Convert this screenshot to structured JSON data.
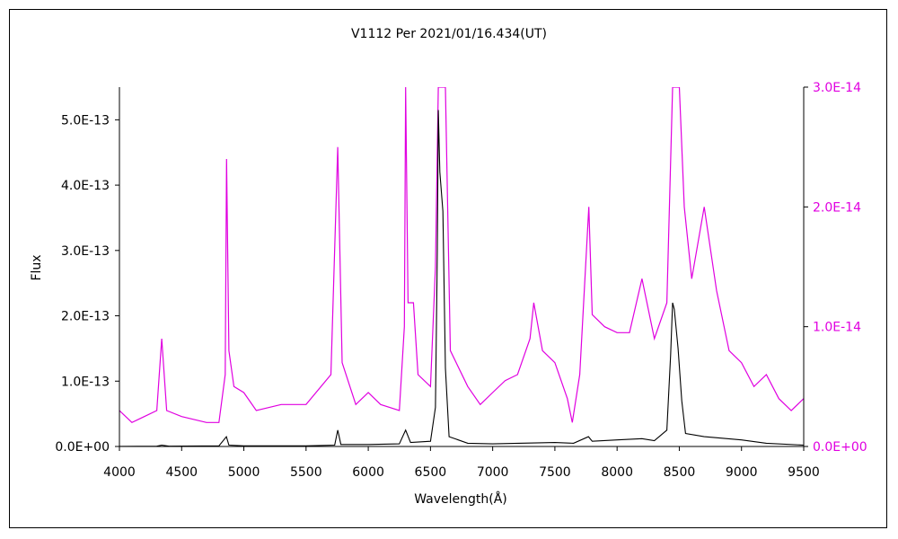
{
  "chart_data": {
    "type": "line",
    "title": "V1112 Per  2021/01/16.434(UT)",
    "xlabel": "Wavelength(Å)",
    "ylabel": "Flux",
    "xlim": [
      4000,
      9500
    ],
    "ylim_left": [
      0,
      5.5e-13
    ],
    "ylim_right": [
      0,
      3e-14
    ],
    "x_ticks": [
      "4000",
      "4500",
      "5000",
      "5500",
      "6000",
      "6500",
      "7000",
      "7500",
      "8000",
      "8500",
      "9000",
      "9500"
    ],
    "y_ticks_left": [
      {
        "value": 0,
        "label": "0.0E+00"
      },
      {
        "value": 1e-13,
        "label": "1.0E-13"
      },
      {
        "value": 2e-13,
        "label": "2.0E-13"
      },
      {
        "value": 3e-13,
        "label": "3.0E-13"
      },
      {
        "value": 4e-13,
        "label": "4.0E-13"
      },
      {
        "value": 5e-13,
        "label": "5.0E-13"
      }
    ],
    "y_ticks_right": [
      {
        "value": 0,
        "label": "0.0E+00"
      },
      {
        "value": 1e-14,
        "label": "1.0E-14"
      },
      {
        "value": 2e-14,
        "label": "2.0E-14"
      },
      {
        "value": 3e-14,
        "label": "3.0E-14"
      }
    ],
    "series": [
      {
        "axis": "left",
        "color": "#000000",
        "points": [
          [
            4000,
            2e-16
          ],
          [
            4300,
            4e-16
          ],
          [
            4340,
            2e-15
          ],
          [
            4400,
            4e-16
          ],
          [
            4800,
            1e-15
          ],
          [
            4860,
            1.5e-14
          ],
          [
            4880,
            2e-15
          ],
          [
            5000,
            1e-15
          ],
          [
            5500,
            1e-15
          ],
          [
            5730,
            2e-15
          ],
          [
            5755,
            2.5e-14
          ],
          [
            5780,
            3e-15
          ],
          [
            6000,
            3e-15
          ],
          [
            6250,
            4e-15
          ],
          [
            6300,
            2.5e-14
          ],
          [
            6340,
            6e-15
          ],
          [
            6500,
            8e-15
          ],
          [
            6540,
            6e-14
          ],
          [
            6555,
            3e-13
          ],
          [
            6563,
            5.15e-13
          ],
          [
            6575,
            4.2e-13
          ],
          [
            6600,
            3.6e-13
          ],
          [
            6620,
            1.2e-13
          ],
          [
            6650,
            1.5e-14
          ],
          [
            6800,
            5e-15
          ],
          [
            7000,
            4e-15
          ],
          [
            7500,
            6e-15
          ],
          [
            7650,
            5e-15
          ],
          [
            7770,
            1.5e-14
          ],
          [
            7800,
            8e-15
          ],
          [
            8000,
            1e-14
          ],
          [
            8200,
            1.2e-14
          ],
          [
            8300,
            9e-15
          ],
          [
            8400,
            2.5e-14
          ],
          [
            8430,
            1.4e-13
          ],
          [
            8446,
            2.2e-13
          ],
          [
            8460,
            2.1e-13
          ],
          [
            8490,
            1.5e-13
          ],
          [
            8520,
            7e-14
          ],
          [
            8550,
            2e-14
          ],
          [
            8700,
            1.5e-14
          ],
          [
            9000,
            1e-14
          ],
          [
            9200,
            5e-15
          ],
          [
            9500,
            2e-15
          ]
        ]
      },
      {
        "axis": "right",
        "color": "#e000e0",
        "points": [
          [
            4000,
            3e-15
          ],
          [
            4100,
            2e-15
          ],
          [
            4200,
            2.5e-15
          ],
          [
            4300,
            3e-15
          ],
          [
            4340,
            9e-15
          ],
          [
            4380,
            3e-15
          ],
          [
            4500,
            2.5e-15
          ],
          [
            4700,
            2e-15
          ],
          [
            4800,
            2e-15
          ],
          [
            4850,
            6e-15
          ],
          [
            4861,
            2.4e-14
          ],
          [
            4880,
            8e-15
          ],
          [
            4920,
            5e-15
          ],
          [
            5000,
            4.5e-15
          ],
          [
            5100,
            3e-15
          ],
          [
            5300,
            3.5e-15
          ],
          [
            5500,
            3.5e-15
          ],
          [
            5700,
            6e-15
          ],
          [
            5755,
            2.5e-14
          ],
          [
            5790,
            7e-15
          ],
          [
            5900,
            3.5e-15
          ],
          [
            6000,
            4.5e-15
          ],
          [
            6100,
            3.5e-15
          ],
          [
            6250,
            3e-15
          ],
          [
            6290,
            1e-14
          ],
          [
            6300,
            3e-14
          ],
          [
            6320,
            1.2e-14
          ],
          [
            6363,
            1.2e-14
          ],
          [
            6400,
            6e-15
          ],
          [
            6500,
            5e-15
          ],
          [
            6540,
            1.5e-14
          ],
          [
            6563,
            3e-14
          ],
          [
            6620,
            3e-14
          ],
          [
            6660,
            8e-15
          ],
          [
            6800,
            5e-15
          ],
          [
            6900,
            3.5e-15
          ],
          [
            7000,
            4.5e-15
          ],
          [
            7100,
            5.5e-15
          ],
          [
            7200,
            6e-15
          ],
          [
            7300,
            9e-15
          ],
          [
            7330,
            1.2e-14
          ],
          [
            7400,
            8e-15
          ],
          [
            7500,
            7e-15
          ],
          [
            7600,
            4e-15
          ],
          [
            7640,
            2e-15
          ],
          [
            7700,
            6e-15
          ],
          [
            7773,
            2e-14
          ],
          [
            7800,
            1.1e-14
          ],
          [
            7900,
            1e-14
          ],
          [
            8000,
            9.5e-15
          ],
          [
            8100,
            9.5e-15
          ],
          [
            8200,
            1.4e-14
          ],
          [
            8300,
            9e-15
          ],
          [
            8400,
            1.2e-14
          ],
          [
            8446,
            3e-14
          ],
          [
            8500,
            3e-14
          ],
          [
            8540,
            2e-14
          ],
          [
            8600,
            1.4e-14
          ],
          [
            8700,
            2e-14
          ],
          [
            8800,
            1.3e-14
          ],
          [
            8900,
            8e-15
          ],
          [
            9000,
            7e-15
          ],
          [
            9100,
            5e-15
          ],
          [
            9200,
            6e-15
          ],
          [
            9300,
            4e-15
          ],
          [
            9400,
            3e-15
          ],
          [
            9500,
            4e-15
          ]
        ]
      }
    ]
  }
}
